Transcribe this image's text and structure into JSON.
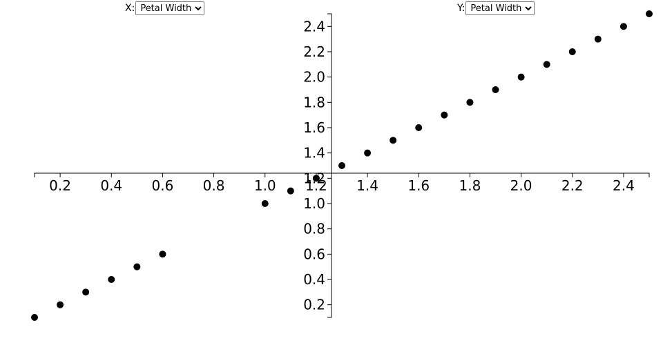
{
  "controls": {
    "x_label": "X:",
    "x_selected": "Petal Width",
    "y_label": "Y:",
    "y_selected": "Petal Width"
  },
  "chart_data": {
    "type": "scatter",
    "xlim": [
      0.1,
      2.5
    ],
    "ylim": [
      0.1,
      2.5
    ],
    "x_ticks": [
      "0.2",
      "0.4",
      "0.6",
      "0.8",
      "1.0",
      "1.2",
      "1.4",
      "1.6",
      "1.8",
      "2.0",
      "2.2",
      "2.4"
    ],
    "y_ticks": [
      "0.2",
      "0.4",
      "0.6",
      "0.8",
      "1.0",
      "1.2",
      "1.4",
      "1.6",
      "1.8",
      "2.0",
      "2.2",
      "2.4"
    ],
    "points": [
      {
        "x": 0.1,
        "y": 0.1
      },
      {
        "x": 0.2,
        "y": 0.2
      },
      {
        "x": 0.3,
        "y": 0.3
      },
      {
        "x": 0.4,
        "y": 0.4
      },
      {
        "x": 0.5,
        "y": 0.5
      },
      {
        "x": 0.6,
        "y": 0.6
      },
      {
        "x": 1.0,
        "y": 1.0
      },
      {
        "x": 1.1,
        "y": 1.1
      },
      {
        "x": 1.2,
        "y": 1.2
      },
      {
        "x": 1.3,
        "y": 1.3
      },
      {
        "x": 1.4,
        "y": 1.4
      },
      {
        "x": 1.5,
        "y": 1.5
      },
      {
        "x": 1.6,
        "y": 1.6
      },
      {
        "x": 1.7,
        "y": 1.7
      },
      {
        "x": 1.8,
        "y": 1.8
      },
      {
        "x": 1.9,
        "y": 1.9
      },
      {
        "x": 2.0,
        "y": 2.0
      },
      {
        "x": 2.1,
        "y": 2.1
      },
      {
        "x": 2.2,
        "y": 2.2
      },
      {
        "x": 2.3,
        "y": 2.3
      },
      {
        "x": 2.4,
        "y": 2.4
      },
      {
        "x": 2.5,
        "y": 2.5
      }
    ],
    "grid": false,
    "point_color": "#000000",
    "axis_color": "#000000"
  }
}
